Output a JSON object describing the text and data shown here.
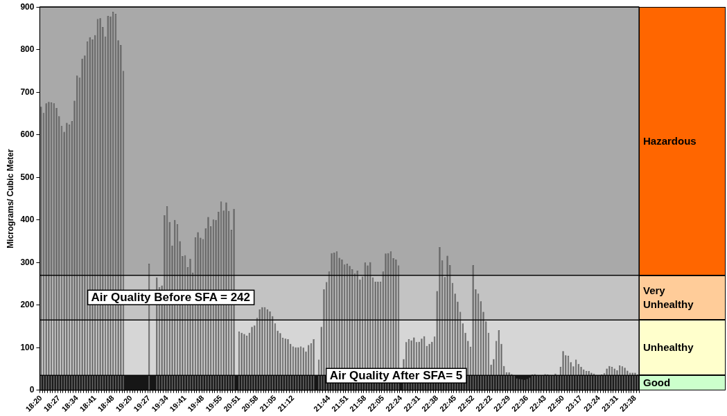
{
  "chart_data": [
    {
      "type": "bar",
      "ylabel": "Micrograms/ Cubic Meter",
      "categories": [
        "18:20",
        null,
        null,
        null,
        null,
        null,
        null,
        "18:27",
        null,
        null,
        null,
        null,
        null,
        null,
        "18:34",
        null,
        null,
        null,
        null,
        null,
        null,
        "18:41",
        null,
        null,
        null,
        null,
        null,
        null,
        "18:48",
        null,
        null,
        null,
        null,
        null,
        null,
        "19:20",
        null,
        null,
        null,
        null,
        null,
        null,
        "19:27",
        null,
        null,
        null,
        null,
        null,
        null,
        "19:34",
        null,
        null,
        null,
        null,
        null,
        null,
        "19:41",
        null,
        null,
        null,
        null,
        null,
        null,
        "19:48",
        null,
        null,
        null,
        null,
        null,
        null,
        "19:55",
        null,
        null,
        null,
        null,
        null,
        null,
        "20:51",
        null,
        null,
        null,
        null,
        null,
        null,
        "20:58",
        null,
        null,
        null,
        null,
        null,
        null,
        "21:05",
        null,
        null,
        null,
        null,
        null,
        null,
        "21:12",
        null,
        null,
        null,
        null,
        null,
        null,
        null,
        null,
        null,
        null,
        null,
        null,
        null,
        "21:44",
        null,
        null,
        null,
        null,
        null,
        null,
        "21:51",
        null,
        null,
        null,
        null,
        null,
        null,
        "21:58",
        null,
        null,
        null,
        null,
        null,
        null,
        "22:05",
        null,
        null,
        null,
        null,
        null,
        null,
        "22:24",
        null,
        null,
        null,
        null,
        null,
        null,
        "22:31",
        null,
        null,
        null,
        null,
        null,
        null,
        "22:38",
        null,
        null,
        null,
        null,
        null,
        null,
        "22:45",
        null,
        null,
        null,
        null,
        null,
        null,
        "22:52",
        null,
        null,
        null,
        null,
        null,
        null,
        "22:22",
        null,
        null,
        null,
        null,
        null,
        null,
        "22:29",
        null,
        null,
        null,
        null,
        null,
        null,
        "22:36",
        null,
        null,
        null,
        null,
        null,
        null,
        "22:43",
        null,
        null,
        null,
        null,
        null,
        null,
        "22:50",
        null,
        null,
        null,
        null,
        null,
        null,
        "23:17",
        null,
        null,
        null,
        null,
        null,
        null,
        "23:24",
        null,
        null,
        null,
        null,
        null,
        null,
        "23:31",
        null,
        null,
        null,
        null,
        null,
        null,
        "23:38",
        null
      ],
      "series": [
        {
          "color": "#696969",
          "values": [
            666,
            651,
            674,
            677,
            676,
            674,
            663,
            644,
            621,
            607,
            628,
            624,
            632,
            680,
            739,
            734,
            779,
            786,
            819,
            829,
            824,
            834,
            872,
            874,
            853,
            831,
            879,
            878,
            889,
            884,
            822,
            811,
            750,
            null,
            null,
            null,
            null,
            null,
            null,
            null,
            null,
            null,
            297,
            null,
            null,
            265,
            242,
            246,
            411,
            432,
            395,
            340,
            400,
            390,
            350,
            315,
            317,
            289,
            309,
            276,
            359,
            371,
            358,
            355,
            380,
            407,
            385,
            401,
            400,
            419,
            443,
            422,
            441,
            421,
            377,
            426,
            null,
            138,
            135,
            132,
            128,
            135,
            149,
            152,
            170,
            190,
            195,
            195,
            190,
            185,
            174,
            157,
            140,
            134,
            123,
            121,
            120,
            109,
            103,
            101,
            101,
            103,
            100,
            91,
            106,
            110,
            120,
            null,
            72,
            149,
            237,
            254,
            279,
            322,
            323,
            326,
            311,
            307,
            295,
            297,
            292,
            284,
            274,
            281,
            260,
            267,
            300,
            293,
            301,
            265,
            255,
            255,
            255,
            279,
            321,
            322,
            326,
            310,
            307,
            293,
            null,
            73,
            113,
            120,
            117,
            124,
            113,
            114,
            121,
            127,
            104,
            109,
            114,
            126,
            233,
            336,
            305,
            266,
            316,
            294,
            252,
            227,
            208,
            184,
            157,
            135,
            116,
            102,
            294,
            237,
            227,
            209,
            184,
            162,
            135,
            60,
            73,
            116,
            141,
            109,
            57,
            42,
            42,
            38,
            35,
            28,
            27,
            26,
            25,
            27,
            30,
            37,
            38,
            36,
            35,
            35,
            38,
            37,
            36,
            35,
            39,
            35,
            55,
            92,
            82,
            81,
            66,
            56,
            72,
            62,
            55,
            49,
            45,
            45,
            41,
            39,
            36,
            36,
            37,
            40,
            51,
            57,
            55,
            51,
            47,
            58,
            56,
            53,
            46,
            41,
            41,
            41,
            37
          ]
        }
      ],
      "ylim": [
        0,
        900
      ],
      "yticks": [
        0,
        100,
        200,
        300,
        400,
        500,
        600,
        700,
        800,
        900
      ],
      "bands": [
        {
          "axis": "y",
          "from": 270,
          "to": 900,
          "color": "#a9a9a9"
        },
        {
          "axis": "y",
          "from": 165,
          "to": 270,
          "color": "#c3c3c3"
        },
        {
          "axis": "y",
          "from": 35,
          "to": 165,
          "color": "#d6d6d6"
        },
        {
          "axis": "y",
          "from": 0,
          "to": 35,
          "color": "#161616"
        }
      ],
      "annotations": [
        "Air Quality Before SFA = 242",
        "Air Quality After SFA= 5"
      ],
      "legend": false
    },
    {
      "type": "other",
      "categories": [
        "Hazardous",
        "Very Unhealthy",
        "Unhealthy",
        "Good"
      ],
      "colors": [
        "#ff6600",
        "#ffcc99",
        "#ffffcc",
        "#ccffcc"
      ]
    }
  ]
}
